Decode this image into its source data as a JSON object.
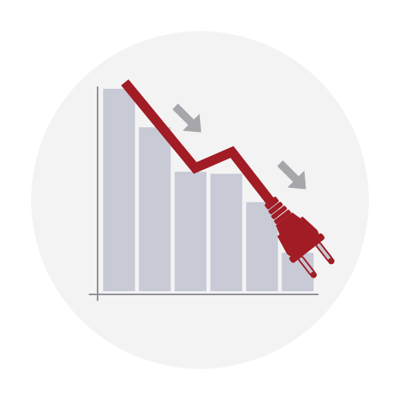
{
  "chart_data": {
    "type": "bar",
    "categories": [
      "",
      "",
      "",
      "",
      "",
      ""
    ],
    "values": [
      100,
      81,
      59,
      58,
      44,
      19
    ],
    "ylim": [
      0,
      100
    ],
    "title": "",
    "xlabel": "",
    "ylabel": "",
    "grid": false,
    "legend": "none",
    "trend_line_values": [
      100,
      59,
      67,
      28
    ]
  },
  "colors": {
    "background_circle": "#f3f3f4",
    "bars": "#c8cad6",
    "axis": "#8f8f95",
    "trend_line": "#a11c24",
    "plug": "#a11c24",
    "plug_prongs": "#c4c6d2",
    "arrows": "#a7a7ab"
  },
  "icons": {
    "plug": "unplugged-power-plug-icon",
    "arrow": "down-right-arrow-icon"
  }
}
